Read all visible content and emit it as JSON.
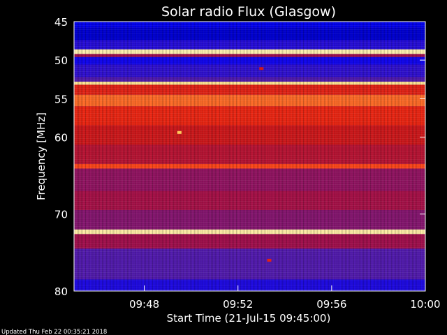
{
  "chart_data": {
    "type": "heatmap",
    "title": "Solar radio Flux (Glasgow)",
    "xlabel": "Start Time (21-Jul-15 09:45:00)",
    "ylabel": "Frequency [MHz]",
    "x_range": [
      "09:45",
      "10:00"
    ],
    "y_range": [
      45,
      80
    ],
    "y_inverted": true,
    "x_ticks": [
      "09:48",
      "09:52",
      "09:56",
      "10:00"
    ],
    "y_ticks": [
      45,
      50,
      55,
      60,
      70,
      80
    ],
    "colormap": [
      "#000060",
      "#0000ff",
      "#3010d0",
      "#6020a0",
      "#a01050",
      "#d01818",
      "#ff3010",
      "#ff8030",
      "#ffd060",
      "#fff8c0"
    ],
    "bands": [
      {
        "from": 45.0,
        "to": 45.8,
        "level": 0.1
      },
      {
        "from": 45.8,
        "to": 47.4,
        "level": 0.08
      },
      {
        "from": 47.4,
        "to": 48.6,
        "level": 0.2
      },
      {
        "from": 48.6,
        "to": 49.2,
        "level": 0.98
      },
      {
        "from": 49.2,
        "to": 49.6,
        "level": 0.45
      },
      {
        "from": 49.6,
        "to": 50.6,
        "level": 0.15
      },
      {
        "from": 50.6,
        "to": 52.2,
        "level": 0.22
      },
      {
        "from": 52.2,
        "to": 52.8,
        "level": 0.3
      },
      {
        "from": 52.8,
        "to": 53.2,
        "level": 0.95
      },
      {
        "from": 53.2,
        "to": 54.5,
        "level": 0.6
      },
      {
        "from": 54.5,
        "to": 56.0,
        "level": 0.75
      },
      {
        "from": 56.0,
        "to": 58.5,
        "level": 0.62
      },
      {
        "from": 58.5,
        "to": 61.0,
        "level": 0.55
      },
      {
        "from": 61.0,
        "to": 63.5,
        "level": 0.5
      },
      {
        "from": 63.5,
        "to": 64.1,
        "level": 0.7
      },
      {
        "from": 64.1,
        "to": 67.0,
        "level": 0.42
      },
      {
        "from": 67.0,
        "to": 69.5,
        "level": 0.46
      },
      {
        "from": 69.5,
        "to": 72.0,
        "level": 0.4
      },
      {
        "from": 72.0,
        "to": 72.6,
        "level": 0.97
      },
      {
        "from": 72.6,
        "to": 74.5,
        "level": 0.45
      },
      {
        "from": 74.5,
        "to": 78.5,
        "level": 0.3
      },
      {
        "from": 78.5,
        "to": 80.0,
        "level": 0.18
      }
    ],
    "bursts": [
      {
        "time": "09:53:00",
        "freq": 51.1,
        "level": 0.55
      },
      {
        "time": "09:49:30",
        "freq": 59.4,
        "level": 0.88
      },
      {
        "time": "09:53:20",
        "freq": 76.0,
        "level": 0.6
      }
    ]
  },
  "footer": {
    "updated": "Updated Thu Feb 22 00:35:21 2018"
  }
}
